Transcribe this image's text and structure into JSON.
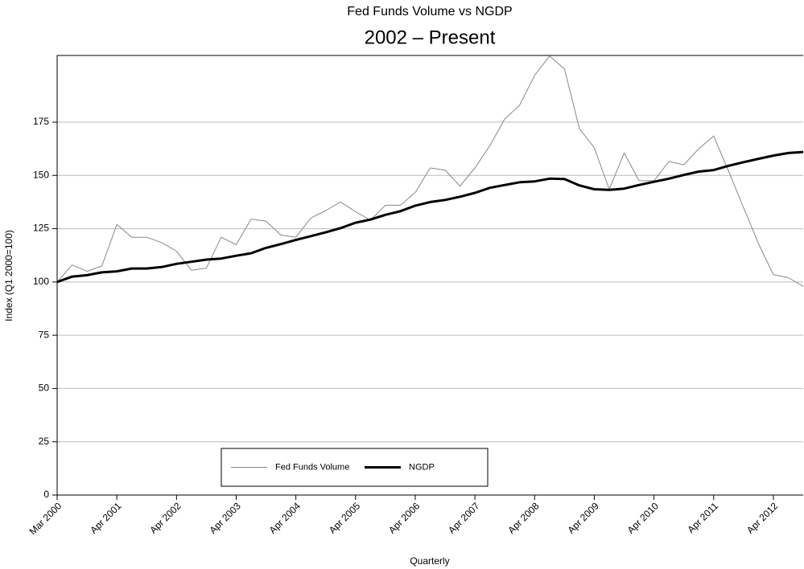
{
  "chart_data": {
    "type": "line",
    "title": "Fed Funds Volume vs NGDP",
    "subtitle": "2002 – Present",
    "x_label": "Quarterly",
    "y_label": "Index (Q1 2000=100)",
    "categories": [
      "Mar 2000",
      null,
      null,
      null,
      "Apr 2001",
      null,
      null,
      null,
      "Apr 2002",
      null,
      null,
      null,
      "Apr 2003",
      null,
      null,
      null,
      "Apr 2004",
      null,
      null,
      null,
      "Apr 2005",
      null,
      null,
      null,
      "Apr 2006",
      null,
      null,
      null,
      "Apr 2007",
      null,
      null,
      null,
      "Apr 2008",
      null,
      null,
      null,
      "Apr 2009",
      null,
      null,
      null,
      "Apr 2010",
      null,
      null,
      null,
      "Apr 2011",
      null,
      null,
      null,
      "Apr 2012",
      null,
      null
    ],
    "series": [
      {
        "name": "Fed Funds Volume",
        "color": "#888888",
        "width": 1,
        "values": [
          100,
          108,
          105,
          107.5,
          127,
          121,
          121,
          118.5,
          114.5,
          105.5,
          106.5,
          121,
          117.5,
          129.5,
          128.5,
          122,
          121,
          130,
          133.5,
          137.5,
          133,
          129,
          136,
          136,
          142,
          153.5,
          152.5,
          145,
          153.5,
          164,
          176.5,
          183,
          197,
          206,
          200,
          172,
          163,
          143.5,
          160.5,
          147.5,
          147.5,
          156.5,
          155,
          162.5,
          168.5,
          152,
          135,
          118,
          103.5,
          102,
          98
        ]
      },
      {
        "name": "NGDP",
        "color": "#000000",
        "width": 3,
        "values": [
          100,
          102.5,
          103.2,
          104.5,
          105,
          106.3,
          106.3,
          107,
          108.5,
          109.5,
          110.5,
          111,
          112.3,
          113.5,
          116,
          117.8,
          119.7,
          121.5,
          123.3,
          125.3,
          127.8,
          129.3,
          131.5,
          133.2,
          135.8,
          137.5,
          138.5,
          140,
          141.8,
          144.2,
          145.5,
          146.8,
          147.2,
          148.5,
          148.3,
          145.3,
          143.5,
          143.2,
          143.8,
          145.5,
          147,
          148.5,
          150.2,
          151.8,
          152.5,
          154.5,
          156.2,
          157.8,
          159.3,
          160.5,
          161
        ]
      }
    ],
    "ylim": [
      0,
      206.3
    ],
    "yticks": [
      0,
      25,
      50,
      75,
      100,
      125,
      150,
      175
    ],
    "grid": true,
    "legend": "bottom-center"
  }
}
